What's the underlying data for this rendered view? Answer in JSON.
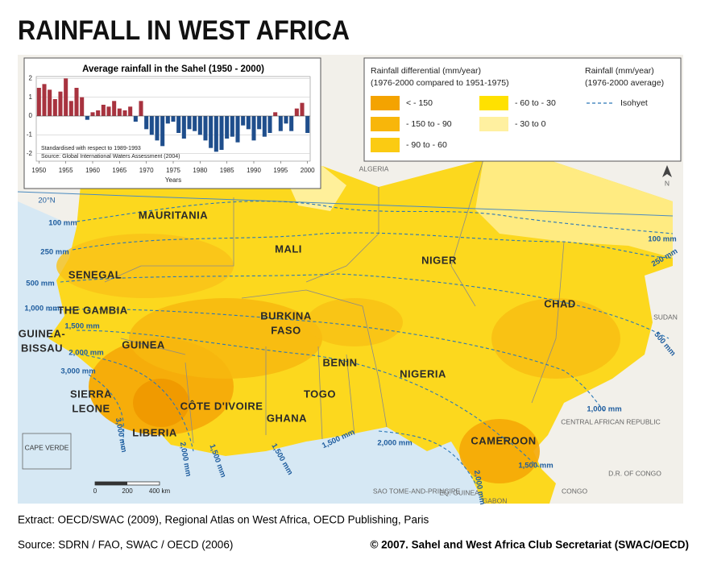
{
  "title": "RAINFALL IN WEST AFRICA",
  "chart_data": {
    "type": "bar",
    "title": "Average rainfall in the Sahel (1950 - 2000)",
    "x_label": "Years",
    "x": [
      1950,
      1951,
      1952,
      1953,
      1954,
      1955,
      1956,
      1957,
      1958,
      1959,
      1960,
      1961,
      1962,
      1963,
      1964,
      1965,
      1966,
      1967,
      1968,
      1969,
      1970,
      1971,
      1972,
      1973,
      1974,
      1975,
      1976,
      1977,
      1978,
      1979,
      1980,
      1981,
      1982,
      1983,
      1984,
      1985,
      1986,
      1987,
      1988,
      1989,
      1990,
      1991,
      1992,
      1993,
      1994,
      1995,
      1996,
      1997,
      1998,
      1999,
      2000
    ],
    "values": [
      1.5,
      1.7,
      1.4,
      0.9,
      1.3,
      2.0,
      0.8,
      1.5,
      1.0,
      -0.2,
      0.2,
      0.3,
      0.6,
      0.5,
      0.8,
      0.4,
      0.3,
      0.5,
      -0.3,
      0.8,
      -0.7,
      -1.0,
      -1.3,
      -1.6,
      -0.4,
      -0.3,
      -0.9,
      -1.2,
      -0.7,
      -0.8,
      -1.0,
      -1.3,
      -1.7,
      -1.9,
      -1.8,
      -1.2,
      -1.1,
      -1.4,
      -0.5,
      -0.7,
      -1.3,
      -0.7,
      -1.1,
      -0.9,
      0.2,
      -0.8,
      -0.4,
      -0.8,
      0.4,
      0.7,
      -0.9
    ],
    "positive_color": "#a8333f",
    "negative_color": "#1f4e8c",
    "xlim": [
      1949.5,
      2000.5
    ],
    "xticks": [
      1950,
      1955,
      1960,
      1965,
      1970,
      1975,
      1980,
      1985,
      1990,
      1995,
      2000
    ],
    "ylim": [
      -2.4,
      2.1
    ],
    "yticks": [
      -2,
      -1,
      0,
      1,
      2
    ],
    "grid": true,
    "notes": [
      "Standardised with respect to 1989-1993",
      "Source: Global International Waters Assessment (2004)"
    ]
  },
  "legend": {
    "differential_title": [
      "Rainfall differential (mm/year)",
      "(1976-2000 compared to 1951-1975)"
    ],
    "items": [
      {
        "label": "< - 150",
        "color": "#f4a300"
      },
      {
        "label": "- 150 to - 90",
        "color": "#f8b60a"
      },
      {
        "label": "- 90 to - 60",
        "color": "#fbcb12"
      },
      {
        "label": "- 60 to - 30",
        "color": "#ffe100"
      },
      {
        "label": "- 30 to 0",
        "color": "#fff0a0"
      }
    ],
    "rainfall_title": [
      "Rainfall (mm/year)",
      "(1976-2000 average)"
    ],
    "isohyet": "Isohyet"
  },
  "map": {
    "countries": [
      [
        "MAURITANIA"
      ],
      [
        "MALI"
      ],
      [
        "NIGER"
      ],
      [
        "CHAD"
      ],
      [
        "SENEGAL"
      ],
      [
        "THE GAMBIA"
      ],
      [
        "GUINEA-",
        "BISSAU"
      ],
      [
        "GUINEA"
      ],
      [
        "BURKINA",
        "FASO"
      ],
      [
        "BENIN"
      ],
      [
        "TOGO"
      ],
      [
        "NIGERIA"
      ],
      [
        "SIERRA",
        "LEONE"
      ],
      [
        "LIBERIA"
      ],
      [
        "CÔTE D'IVOIRE"
      ],
      [
        "GHANA"
      ],
      [
        "CAMEROON"
      ]
    ],
    "neighbours": [
      "ALGERIA",
      "SUDAN",
      "CENTRAL AFRICAN REPUBLIC",
      "D.R. OF CONGO",
      "CONGO",
      "GABON",
      "SAO TOME-AND-PRINCIPE",
      "EQ. GUINEA"
    ],
    "isohyets": [
      "100 mm",
      "250 mm",
      "500 mm",
      "1,000 mm",
      "1,500 mm",
      "2,000 mm",
      "3,000 mm",
      "3,000 mm",
      "2,000 mm",
      "1,500 mm",
      "1,500 mm",
      "1,500 mm",
      "2,000 mm",
      "1,000 mm",
      "1,500 mm",
      "2,000 mm",
      "500 mm",
      "250 mm",
      "100 mm"
    ],
    "latitude": "20°N",
    "north": "N",
    "inset_label": "CAPE VERDE",
    "scale": [
      "0",
      "200",
      "400 km"
    ]
  },
  "footer": {
    "extract": "Extract: OECD/SWAC (2009), Regional Atlas on West Africa, OECD Publishing, Paris",
    "source": "Source: SDRN / FAO, SWAC / OECD (2006)",
    "copyright": "© 2007. Sahel and West Africa Club Secretariat (SWAC/OECD)"
  }
}
